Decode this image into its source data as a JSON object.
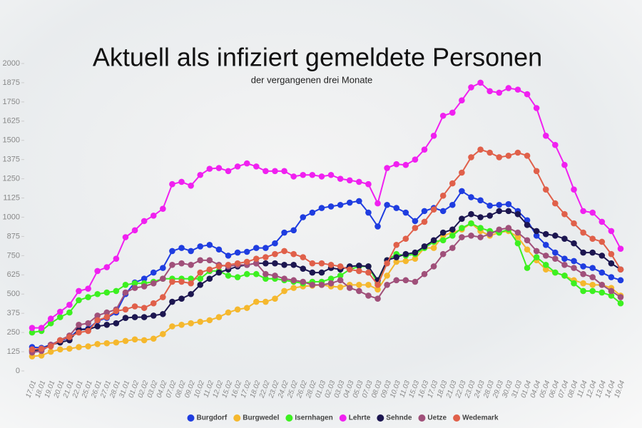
{
  "chart_data": {
    "type": "line",
    "title": "Aktuell als infiziert gemeldete Personen",
    "subtitle": "der vergangenen drei Monate",
    "categories": [
      "17.01",
      "18.01",
      "19.01",
      "20.01",
      "21.01",
      "22.01",
      "25.01",
      "26.01",
      "27.01",
      "28.01",
      "31.01",
      "01.02",
      "02.02",
      "03.02",
      "04.02",
      "07.02",
      "08.02",
      "09.02",
      "10.02",
      "11.02",
      "12.02",
      "15.02",
      "16.02",
      "17.02",
      "18.02",
      "22.02",
      "23.02",
      "24.02",
      "25.02",
      "26.02",
      "28.02",
      "01.03",
      "02.03",
      "03.03",
      "04.03",
      "05.03",
      "07.03",
      "08.03",
      "09.03",
      "10.03",
      "11.03",
      "15.03",
      "16.03",
      "17.03",
      "18.03",
      "21.03",
      "22.03",
      "23.03",
      "24.03",
      "28.03",
      "29.03",
      "30.03",
      "31.03",
      "01.04",
      "04.04",
      "05.04",
      "06.04",
      "07.04",
      "08.04",
      "11.04",
      "12.04",
      "13.04",
      "14.04",
      "19.04"
    ],
    "series": [
      {
        "name": "Burgdorf",
        "color": "#1f3de0",
        "values": [
          155,
          150,
          170,
          195,
          215,
          270,
          275,
          325,
          345,
          380,
          500,
          575,
          600,
          640,
          670,
          780,
          800,
          780,
          810,
          820,
          790,
          750,
          770,
          775,
          800,
          800,
          830,
          900,
          915,
          1000,
          1030,
          1060,
          1070,
          1080,
          1095,
          1105,
          1030,
          940,
          1080,
          1060,
          1030,
          975,
          1040,
          1060,
          1040,
          1080,
          1170,
          1130,
          1110,
          1075,
          1080,
          1085,
          1040,
          980,
          880,
          820,
          770,
          730,
          715,
          680,
          670,
          640,
          610,
          590
        ]
      },
      {
        "name": "Burgwedel",
        "color": "#f5b82e",
        "values": [
          95,
          100,
          125,
          140,
          145,
          155,
          160,
          175,
          180,
          185,
          195,
          205,
          200,
          210,
          240,
          290,
          300,
          310,
          320,
          330,
          350,
          380,
          400,
          410,
          450,
          450,
          470,
          520,
          540,
          550,
          555,
          560,
          550,
          545,
          560,
          560,
          560,
          530,
          620,
          710,
          715,
          730,
          800,
          800,
          880,
          900,
          920,
          960,
          910,
          880,
          900,
          910,
          870,
          790,
          720,
          660,
          640,
          620,
          590,
          570,
          560,
          560,
          540,
          490
        ]
      },
      {
        "name": "Isernhagen",
        "color": "#3cf020",
        "values": [
          250,
          260,
          310,
          350,
          380,
          460,
          480,
          500,
          510,
          520,
          560,
          570,
          570,
          580,
          600,
          600,
          600,
          600,
          600,
          650,
          650,
          620,
          610,
          630,
          630,
          600,
          600,
          590,
          580,
          570,
          580,
          580,
          600,
          620,
          660,
          680,
          680,
          570,
          720,
          760,
          750,
          760,
          800,
          840,
          850,
          880,
          930,
          960,
          930,
          910,
          900,
          920,
          830,
          670,
          740,
          690,
          640,
          620,
          570,
          520,
          520,
          510,
          490,
          440
        ]
      },
      {
        "name": "Lehrte",
        "color": "#f020f0",
        "values": [
          280,
          280,
          340,
          385,
          430,
          520,
          535,
          650,
          675,
          730,
          870,
          915,
          975,
          1010,
          1055,
          1215,
          1230,
          1205,
          1275,
          1315,
          1320,
          1300,
          1330,
          1350,
          1330,
          1300,
          1300,
          1300,
          1265,
          1275,
          1275,
          1265,
          1275,
          1250,
          1240,
          1230,
          1215,
          1090,
          1320,
          1345,
          1340,
          1375,
          1440,
          1530,
          1660,
          1680,
          1760,
          1845,
          1875,
          1820,
          1810,
          1840,
          1830,
          1800,
          1710,
          1530,
          1470,
          1340,
          1180,
          1040,
          1030,
          970,
          910,
          795
        ]
      },
      {
        "name": "Sehnde",
        "color": "#1c1650",
        "values": [
          130,
          140,
          170,
          185,
          200,
          270,
          270,
          290,
          300,
          310,
          345,
          350,
          350,
          360,
          370,
          450,
          470,
          500,
          560,
          600,
          640,
          660,
          680,
          690,
          700,
          700,
          700,
          690,
          690,
          665,
          640,
          640,
          670,
          660,
          680,
          685,
          680,
          590,
          720,
          740,
          760,
          770,
          810,
          850,
          900,
          920,
          990,
          1020,
          1000,
          1010,
          1040,
          1040,
          1020,
          950,
          910,
          890,
          880,
          860,
          830,
          770,
          770,
          750,
          700,
          660
        ]
      },
      {
        "name": "Uetze",
        "color": "#a0507a",
        "values": [
          120,
          130,
          170,
          200,
          230,
          300,
          310,
          360,
          380,
          400,
          510,
          540,
          550,
          570,
          600,
          690,
          700,
          690,
          720,
          720,
          690,
          680,
          690,
          690,
          700,
          630,
          620,
          600,
          590,
          580,
          560,
          560,
          570,
          590,
          540,
          520,
          490,
          470,
          560,
          590,
          590,
          580,
          630,
          680,
          760,
          800,
          870,
          880,
          870,
          890,
          920,
          930,
          900,
          850,
          780,
          750,
          730,
          690,
          670,
          630,
          610,
          560,
          520,
          480
        ]
      },
      {
        "name": "Wedemark",
        "color": "#e0604a",
        "values": [
          140,
          145,
          160,
          200,
          220,
          250,
          260,
          330,
          350,
          390,
          400,
          420,
          410,
          440,
          480,
          580,
          580,
          570,
          640,
          660,
          680,
          690,
          700,
          710,
          730,
          740,
          760,
          780,
          760,
          740,
          700,
          700,
          690,
          680,
          660,
          650,
          640,
          560,
          700,
          820,
          860,
          930,
          970,
          1050,
          1140,
          1220,
          1290,
          1390,
          1440,
          1420,
          1390,
          1400,
          1420,
          1400,
          1300,
          1180,
          1090,
          1020,
          960,
          900,
          860,
          840,
          760,
          660
        ]
      }
    ],
    "ylim": [
      0,
      2000
    ],
    "yticks": [
      0,
      125,
      250,
      375,
      500,
      625,
      750,
      875,
      1000,
      1125,
      1250,
      1375,
      1500,
      1625,
      1750,
      1875,
      2000
    ],
    "legend": "bottom"
  }
}
